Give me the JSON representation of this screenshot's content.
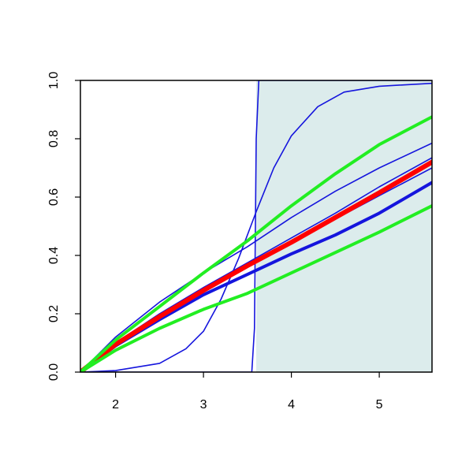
{
  "chart_data": {
    "type": "line",
    "title": "",
    "xlabel": "",
    "ylabel": "",
    "xlim": [
      1.6,
      5.6
    ],
    "ylim": [
      0,
      1
    ],
    "grid": false,
    "x_ticks": [
      2,
      3,
      4,
      5
    ],
    "x_tick_labels": [
      "2",
      "3",
      "4",
      "5"
    ],
    "y_ticks": [
      0,
      0.2,
      0.4,
      0.6,
      0.8,
      1
    ],
    "y_tick_labels": [
      "0.0",
      "0.2",
      "0.4",
      "0.6",
      "0.8",
      "1.0"
    ],
    "shaded_region": {
      "x_from": 3.6,
      "x_to": 5.6,
      "y_from": 0,
      "y_to": 1,
      "color": "#dcecec"
    },
    "colors": {
      "blue": "#1515dd",
      "red": "#ff0000",
      "green": "#22ee22",
      "axis": "#000000"
    },
    "series": [
      {
        "color": "#1515dd",
        "width": 1.6,
        "x": [
          1.6,
          3.55,
          3.58,
          3.6,
          3.63,
          5.6
        ],
        "y": [
          0,
          0,
          0.15,
          0.8,
          1,
          1
        ]
      },
      {
        "color": "#1515dd",
        "width": 1.6,
        "x": [
          1.6,
          2.0,
          2.5,
          2.8,
          3.0,
          3.2,
          3.4,
          3.6,
          3.8,
          4.0,
          4.3,
          4.6,
          5.0,
          5.6
        ],
        "y": [
          0,
          0.005,
          0.03,
          0.08,
          0.14,
          0.25,
          0.39,
          0.55,
          0.7,
          0.81,
          0.91,
          0.96,
          0.98,
          0.99
        ]
      },
      {
        "color": "#1515dd",
        "width": 1.6,
        "x": [
          1.6,
          2.0,
          2.5,
          3.0,
          3.5,
          4.0,
          4.5,
          5.0,
          5.6
        ],
        "y": [
          0,
          0.12,
          0.24,
          0.34,
          0.43,
          0.53,
          0.62,
          0.7,
          0.785
        ]
      },
      {
        "color": "#1515dd",
        "width": 1.6,
        "x": [
          1.6,
          2.0,
          2.5,
          3.0,
          3.5,
          4.0,
          4.5,
          5.0,
          5.6
        ],
        "y": [
          0,
          0.1,
          0.2,
          0.29,
          0.375,
          0.46,
          0.545,
          0.635,
          0.735
        ]
      },
      {
        "color": "#1515dd",
        "width": 1.6,
        "x": [
          1.6,
          2.0,
          2.5,
          3.0,
          3.5,
          4.0,
          4.5,
          5.0,
          5.6
        ],
        "y": [
          0,
          0.095,
          0.195,
          0.285,
          0.365,
          0.445,
          0.525,
          0.605,
          0.7
        ]
      },
      {
        "color": "#1515dd",
        "width": 4,
        "x": [
          1.6,
          2.0,
          2.5,
          3.0,
          3.5,
          4.0,
          4.5,
          5.0,
          5.6
        ],
        "y": [
          0,
          0.09,
          0.18,
          0.265,
          0.335,
          0.405,
          0.47,
          0.545,
          0.65
        ]
      },
      {
        "color": "#ff0000",
        "width": 6,
        "x": [
          1.6,
          2.0,
          2.5,
          3.0,
          3.5,
          4.0,
          4.5,
          5.0,
          5.6
        ],
        "y": [
          0,
          0.095,
          0.19,
          0.28,
          0.365,
          0.445,
          0.53,
          0.615,
          0.72
        ]
      },
      {
        "color": "#22ee22",
        "width": 4,
        "x": [
          1.6,
          2.0,
          2.5,
          3.0,
          3.5,
          4.0,
          4.5,
          5.0,
          5.6
        ],
        "y": [
          0,
          0.11,
          0.225,
          0.34,
          0.45,
          0.57,
          0.68,
          0.78,
          0.875
        ]
      },
      {
        "color": "#22ee22",
        "width": 4,
        "x": [
          1.6,
          2.0,
          2.5,
          3.0,
          3.5,
          4.0,
          4.5,
          5.0,
          5.6
        ],
        "y": [
          0,
          0.075,
          0.15,
          0.215,
          0.27,
          0.34,
          0.41,
          0.48,
          0.57
        ]
      }
    ]
  }
}
